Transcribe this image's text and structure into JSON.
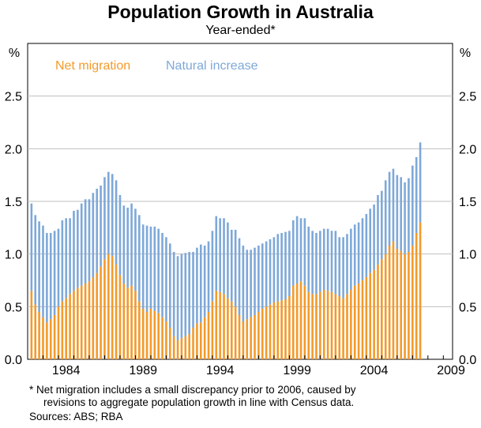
{
  "chart_data": {
    "type": "bar",
    "stacked": true,
    "title": "Population Growth in Australia",
    "subtitle": "Year-ended*",
    "ylabel_left": "%",
    "ylabel_right": "%",
    "ylim": [
      0,
      3.0
    ],
    "yticks": [
      "0.0",
      "0.5",
      "1.0",
      "1.5",
      "2.0",
      "2.5"
    ],
    "xticks": [
      "1984",
      "1989",
      "1994",
      "1999",
      "2004",
      "2009"
    ],
    "x_start": 1982.25,
    "x_step": 0.25,
    "series": [
      {
        "name": "Net migration",
        "color": "#f39a2b",
        "values": [
          0.65,
          0.52,
          0.45,
          0.4,
          0.35,
          0.38,
          0.42,
          0.5,
          0.55,
          0.58,
          0.62,
          0.65,
          0.68,
          0.7,
          0.72,
          0.74,
          0.78,
          0.82,
          0.88,
          0.95,
          1.0,
          0.98,
          0.9,
          0.8,
          0.72,
          0.68,
          0.7,
          0.65,
          0.55,
          0.48,
          0.45,
          0.48,
          0.46,
          0.44,
          0.4,
          0.36,
          0.3,
          0.22,
          0.18,
          0.2,
          0.22,
          0.24,
          0.3,
          0.34,
          0.35,
          0.4,
          0.45,
          0.55,
          0.65,
          0.64,
          0.62,
          0.58,
          0.55,
          0.5,
          0.42,
          0.36,
          0.38,
          0.4,
          0.42,
          0.45,
          0.48,
          0.5,
          0.52,
          0.54,
          0.55,
          0.56,
          0.57,
          0.6,
          0.7,
          0.72,
          0.74,
          0.7,
          0.64,
          0.62,
          0.62,
          0.64,
          0.66,
          0.65,
          0.64,
          0.62,
          0.6,
          0.58,
          0.62,
          0.66,
          0.7,
          0.72,
          0.75,
          0.78,
          0.82,
          0.85,
          0.9,
          0.95,
          1.0,
          1.08,
          1.12,
          1.05,
          1.03,
          1.0,
          1.02,
          1.08,
          1.2,
          1.3
        ]
      },
      {
        "name": "Natural increase",
        "color": "#7ea8d8",
        "values": [
          0.83,
          0.85,
          0.86,
          0.87,
          0.85,
          0.82,
          0.8,
          0.74,
          0.77,
          0.76,
          0.72,
          0.76,
          0.74,
          0.78,
          0.8,
          0.78,
          0.8,
          0.8,
          0.77,
          0.78,
          0.78,
          0.78,
          0.8,
          0.76,
          0.74,
          0.76,
          0.78,
          0.78,
          0.82,
          0.8,
          0.82,
          0.78,
          0.8,
          0.8,
          0.8,
          0.8,
          0.8,
          0.8,
          0.8,
          0.8,
          0.79,
          0.78,
          0.72,
          0.72,
          0.74,
          0.68,
          0.67,
          0.67,
          0.71,
          0.7,
          0.72,
          0.72,
          0.68,
          0.73,
          0.73,
          0.72,
          0.66,
          0.64,
          0.64,
          0.63,
          0.62,
          0.62,
          0.62,
          0.62,
          0.64,
          0.64,
          0.64,
          0.62,
          0.62,
          0.64,
          0.6,
          0.64,
          0.62,
          0.6,
          0.58,
          0.58,
          0.58,
          0.59,
          0.58,
          0.6,
          0.56,
          0.58,
          0.57,
          0.58,
          0.58,
          0.58,
          0.59,
          0.6,
          0.61,
          0.62,
          0.66,
          0.65,
          0.7,
          0.7,
          0.69,
          0.7,
          0.7,
          0.68,
          0.7,
          0.76,
          0.72,
          0.76
        ]
      }
    ],
    "legend": [
      "Net migration",
      "Natural increase"
    ]
  },
  "footnote_line1": "*   Net migration includes a small discrepancy prior to 2006, caused by",
  "footnote_line2": "revisions to aggregate population growth in line with Census data.",
  "sources": "Sources: ABS; RBA"
}
